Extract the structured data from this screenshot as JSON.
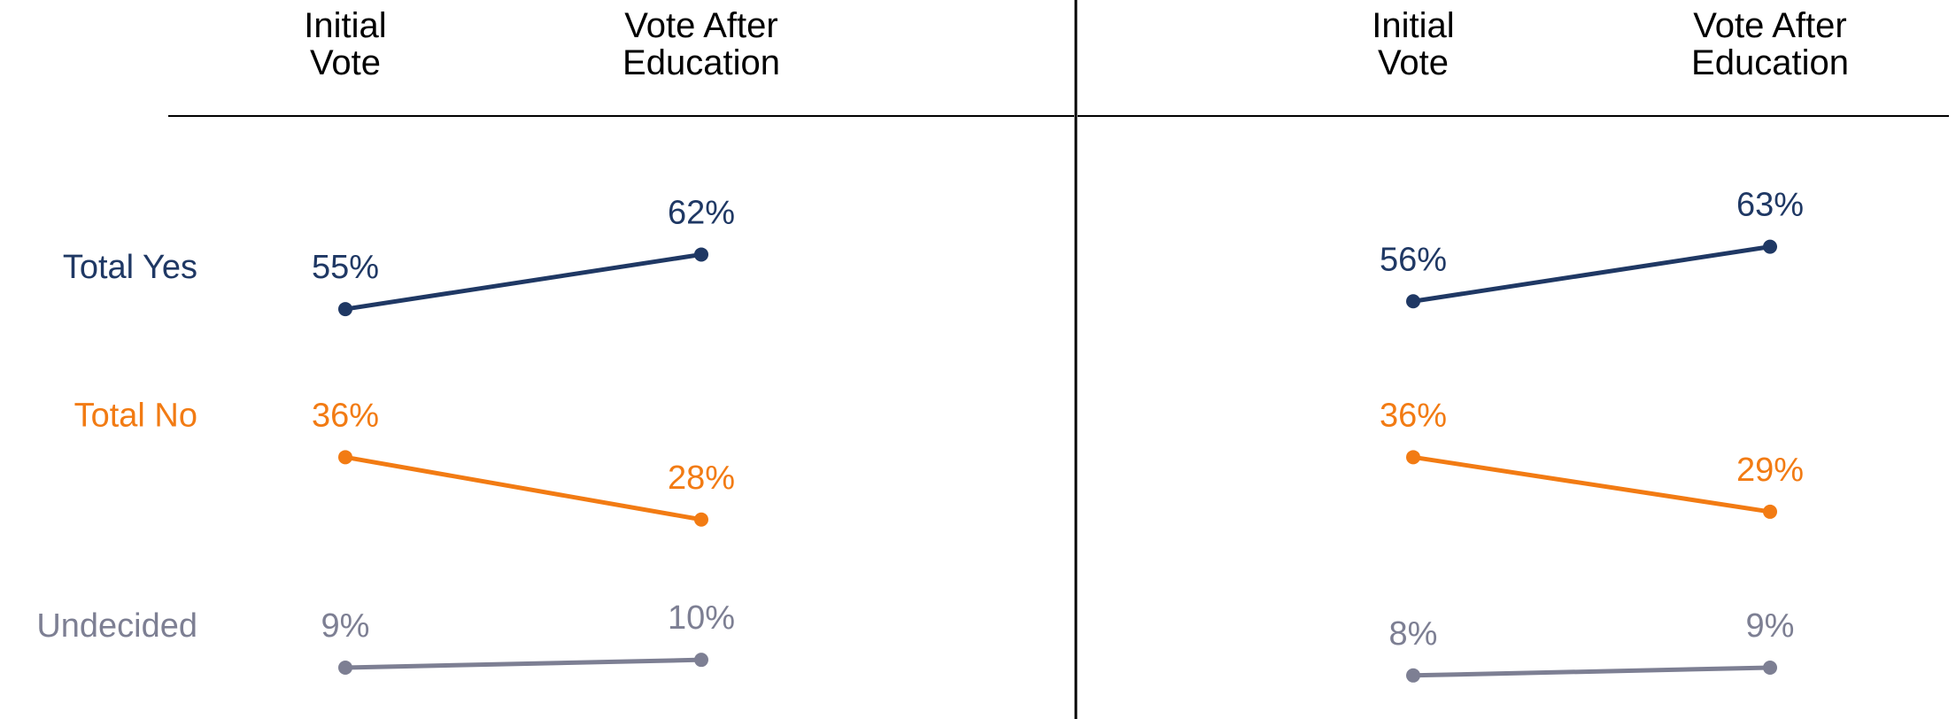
{
  "chart_data": [
    {
      "type": "line",
      "categories": [
        "Initial Vote",
        "Vote After Education"
      ],
      "ylim": [
        4,
        80
      ],
      "series": [
        {
          "name": "Total Yes",
          "color": "#1f3864",
          "values": [
            55,
            62
          ],
          "value_labels": [
            "55%",
            "62%"
          ]
        },
        {
          "name": "Total No",
          "color": "#f27b13",
          "values": [
            36,
            28
          ],
          "value_labels": [
            "36%",
            "28%"
          ]
        },
        {
          "name": "Undecided",
          "color": "#7d7f93",
          "values": [
            9,
            10
          ],
          "value_labels": [
            "9%",
            "10%"
          ]
        }
      ]
    },
    {
      "type": "line",
      "categories": [
        "Initial Vote",
        "Vote After Education"
      ],
      "ylim": [
        4,
        80
      ],
      "series": [
        {
          "color": "#1f3864",
          "values": [
            56,
            63
          ],
          "value_labels": [
            "56%",
            "63%"
          ]
        },
        {
          "color": "#f27b13",
          "values": [
            36,
            29
          ],
          "value_labels": [
            "36%",
            "29%"
          ]
        },
        {
          "color": "#7d7f93",
          "values": [
            8,
            9
          ],
          "value_labels": [
            "8%",
            "9%"
          ]
        }
      ]
    }
  ]
}
